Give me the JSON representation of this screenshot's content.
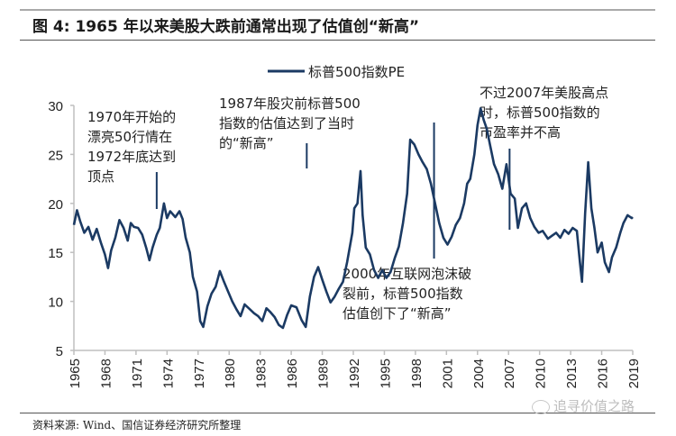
{
  "header": {
    "title": "图 4:  1965 年以来美股大跌前通常出现了估值创“新高”"
  },
  "footer": {
    "source": "资料来源: Wind、国信证券经济研究所整理",
    "watermark": "追寻价值之路"
  },
  "colors": {
    "series": "#1b3a63",
    "axis": "#bfbfbf",
    "text": "#222222"
  },
  "chart_data": {
    "type": "line",
    "title": "",
    "xlabel": "",
    "ylabel": "",
    "xlim": [
      1965,
      2019
    ],
    "ylim": [
      5,
      30
    ],
    "grid": false,
    "legend_position": "top-center",
    "x_tick_labels": [
      "1965",
      "1968",
      "1971",
      "1974",
      "1977",
      "1980",
      "1983",
      "1986",
      "1989",
      "1992",
      "1995",
      "1998",
      "2001",
      "2004",
      "2007",
      "2010",
      "2013",
      "2016",
      "2019"
    ],
    "y_tick_labels": [
      "5",
      "10",
      "15",
      "20",
      "25",
      "30"
    ],
    "series": [
      {
        "name": "标普500指数PE",
        "points": [
          [
            1965.0,
            17.8
          ],
          [
            1965.3,
            19.3
          ],
          [
            1965.6,
            18.2
          ],
          [
            1966.0,
            17.0
          ],
          [
            1966.4,
            17.6
          ],
          [
            1966.8,
            16.3
          ],
          [
            1967.2,
            17.4
          ],
          [
            1967.6,
            16.0
          ],
          [
            1968.0,
            14.8
          ],
          [
            1968.3,
            13.4
          ],
          [
            1968.6,
            15.2
          ],
          [
            1969.0,
            16.5
          ],
          [
            1969.4,
            18.3
          ],
          [
            1969.8,
            17.5
          ],
          [
            1970.2,
            16.2
          ],
          [
            1970.5,
            18.0
          ],
          [
            1970.8,
            17.6
          ],
          [
            1971.2,
            17.5
          ],
          [
            1971.6,
            16.8
          ],
          [
            1972.0,
            15.4
          ],
          [
            1972.3,
            14.2
          ],
          [
            1972.6,
            15.5
          ],
          [
            1973.0,
            16.8
          ],
          [
            1973.3,
            17.5
          ],
          [
            1973.7,
            20.0
          ],
          [
            1974.0,
            18.5
          ],
          [
            1974.3,
            19.2
          ],
          [
            1974.8,
            18.6
          ],
          [
            1975.2,
            19.2
          ],
          [
            1975.5,
            18.4
          ],
          [
            1975.8,
            16.5
          ],
          [
            1976.2,
            15.0
          ],
          [
            1976.5,
            12.5
          ],
          [
            1976.9,
            11.0
          ],
          [
            1977.2,
            8.0
          ],
          [
            1977.5,
            7.4
          ],
          [
            1977.9,
            9.5
          ],
          [
            1978.3,
            10.8
          ],
          [
            1978.7,
            11.5
          ],
          [
            1979.1,
            13.1
          ],
          [
            1979.5,
            12.0
          ],
          [
            1979.9,
            11.0
          ],
          [
            1980.3,
            10.0
          ],
          [
            1980.7,
            9.2
          ],
          [
            1981.1,
            8.5
          ],
          [
            1981.5,
            9.7
          ],
          [
            1982.0,
            9.2
          ],
          [
            1982.4,
            8.8
          ],
          [
            1982.8,
            8.5
          ],
          [
            1983.2,
            8.0
          ],
          [
            1983.6,
            9.3
          ],
          [
            1984.0,
            8.9
          ],
          [
            1984.4,
            8.4
          ],
          [
            1984.8,
            7.6
          ],
          [
            1985.2,
            7.3
          ],
          [
            1985.6,
            8.6
          ],
          [
            1986.0,
            9.6
          ],
          [
            1986.5,
            9.4
          ],
          [
            1987.0,
            8.1
          ],
          [
            1987.4,
            7.4
          ],
          [
            1987.8,
            10.5
          ],
          [
            1988.2,
            12.5
          ],
          [
            1988.6,
            13.5
          ],
          [
            1989.0,
            12.2
          ],
          [
            1989.4,
            11.0
          ],
          [
            1989.8,
            9.9
          ],
          [
            1990.2,
            10.5
          ],
          [
            1990.6,
            11.3
          ],
          [
            1991.0,
            12.0
          ],
          [
            1991.4,
            14.0
          ],
          [
            1991.9,
            17.0
          ],
          [
            1992.1,
            19.5
          ],
          [
            1992.4,
            20.0
          ],
          [
            1992.7,
            23.3
          ],
          [
            1992.9,
            18.8
          ],
          [
            1993.2,
            15.5
          ],
          [
            1993.6,
            14.8
          ],
          [
            1994.0,
            13.2
          ],
          [
            1994.4,
            12.4
          ],
          [
            1994.8,
            13.2
          ],
          [
            1995.2,
            12.4
          ],
          [
            1995.6,
            13.0
          ],
          [
            1996.0,
            14.4
          ],
          [
            1996.4,
            15.6
          ],
          [
            1996.8,
            18.0
          ],
          [
            1997.2,
            21.0
          ],
          [
            1997.5,
            26.5
          ],
          [
            1997.9,
            26.0
          ],
          [
            1998.3,
            25.0
          ],
          [
            1998.7,
            24.2
          ],
          [
            1999.1,
            23.5
          ],
          [
            1999.5,
            22.0
          ],
          [
            1999.9,
            20.0
          ],
          [
            2000.3,
            18.0
          ],
          [
            2000.7,
            16.5
          ],
          [
            2001.1,
            15.8
          ],
          [
            2001.5,
            16.6
          ],
          [
            2001.9,
            17.8
          ],
          [
            2002.3,
            18.5
          ],
          [
            2002.7,
            20.0
          ],
          [
            2003.0,
            22.0
          ],
          [
            2003.3,
            22.5
          ],
          [
            2003.7,
            25.0
          ],
          [
            2004.0,
            28.0
          ],
          [
            2004.3,
            29.7
          ],
          [
            2004.6,
            28.5
          ],
          [
            2004.9,
            27.6
          ],
          [
            2005.2,
            26.0
          ],
          [
            2005.6,
            24.0
          ],
          [
            2006.0,
            23.0
          ],
          [
            2006.4,
            21.5
          ],
          [
            2006.8,
            24.0
          ],
          [
            2007.2,
            21.0
          ],
          [
            2007.6,
            20.5
          ],
          [
            2007.9,
            17.5
          ],
          [
            2008.3,
            19.5
          ],
          [
            2008.7,
            20.0
          ],
          [
            2009.1,
            18.5
          ],
          [
            2009.5,
            17.6
          ],
          [
            2009.9,
            17.0
          ],
          [
            2010.3,
            17.2
          ],
          [
            2010.8,
            16.4
          ],
          [
            2011.2,
            16.7
          ],
          [
            2011.6,
            17.0
          ],
          [
            2012.0,
            16.5
          ],
          [
            2012.4,
            17.3
          ],
          [
            2012.8,
            16.9
          ],
          [
            2013.2,
            17.5
          ],
          [
            2013.6,
            17.2
          ],
          [
            2013.9,
            14.0
          ],
          [
            2014.1,
            12.0
          ],
          [
            2014.4,
            19.0
          ],
          [
            2014.7,
            24.2
          ],
          [
            2015.0,
            19.5
          ],
          [
            2015.3,
            17.5
          ],
          [
            2015.6,
            15.0
          ],
          [
            2016.0,
            16.0
          ],
          [
            2016.3,
            14.0
          ],
          [
            2016.7,
            13.0
          ],
          [
            2017.0,
            14.5
          ],
          [
            2017.4,
            15.5
          ],
          [
            2017.8,
            17.0
          ],
          [
            2018.1,
            18.0
          ],
          [
            2018.5,
            18.8
          ],
          [
            2018.9,
            18.5
          ],
          [
            2019.0,
            18.6
          ]
        ]
      }
    ],
    "annotations": [
      {
        "lines": [
          "1970年开始的",
          "漂亮50行情在",
          "1972年底达到",
          "顶点"
        ],
        "year": 1973.0
      },
      {
        "lines": [
          "1987年股灾前标普500",
          "指数的估值达到了当时",
          "的“新高”"
        ],
        "year": 1987.5
      },
      {
        "lines": [
          "2000年互联网泡沫破",
          "裂前，标普500指数",
          "估值创下了“新高”"
        ],
        "year": 1999.8
      },
      {
        "lines": [
          "不过2007年美股高点",
          "时，标普500指数的",
          "市盈率并不高"
        ],
        "year": 2007.1
      }
    ]
  }
}
